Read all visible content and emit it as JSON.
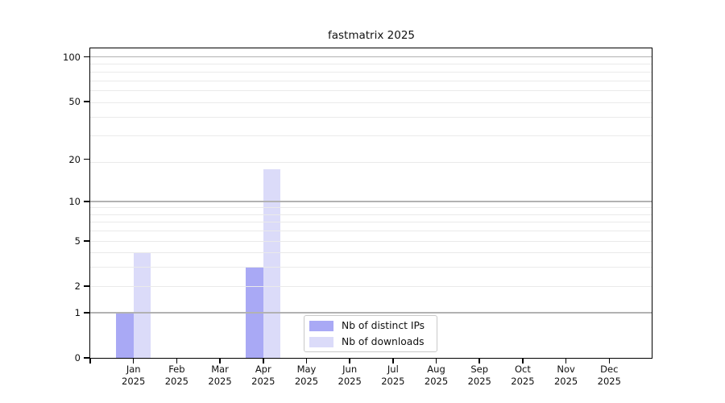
{
  "chart_data": {
    "type": "bar",
    "title": "fastmatrix 2025",
    "categories": [
      "Jan",
      "Feb",
      "Mar",
      "Apr",
      "May",
      "Jun",
      "Jul",
      "Aug",
      "Sep",
      "Oct",
      "Nov",
      "Dec"
    ],
    "x_year_label": "2025",
    "series": [
      {
        "name": "Nb of distinct IPs",
        "color": "#a9a9f5",
        "values": [
          1,
          0,
          0,
          3,
          0,
          0,
          0,
          0,
          0,
          0,
          0,
          0
        ]
      },
      {
        "name": "Nb of downloads",
        "color": "#dbdbf9",
        "values": [
          4,
          0,
          0,
          17,
          0,
          0,
          0,
          0,
          0,
          0,
          0,
          0
        ]
      }
    ],
    "y_scale": "log10(1+y)",
    "y_ticks": [
      0,
      1,
      2,
      5,
      10,
      20,
      50,
      100
    ],
    "ylim": [
      0,
      114
    ],
    "grid": {
      "major_values": [
        1,
        10,
        100
      ],
      "minor_values": [
        2,
        3,
        4,
        5,
        6,
        7,
        8,
        9,
        19,
        29,
        39,
        49,
        59,
        69,
        79,
        89
      ],
      "major_color": "#b2b2b2",
      "minor_color": "#eaeaea"
    },
    "legend": {
      "location": "lower center"
    },
    "colors": {
      "spine": "#000000",
      "text": "#0f0f0f",
      "background": "#ffffff"
    }
  }
}
